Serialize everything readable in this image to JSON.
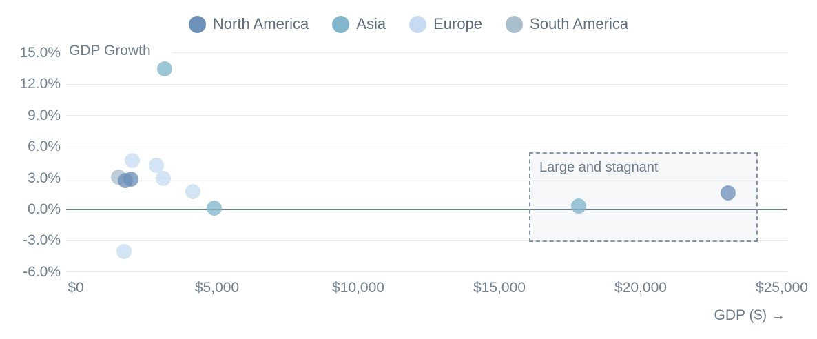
{
  "chart_data": {
    "type": "scatter",
    "title": "",
    "xlabel": "GDP ($) →",
    "ylabel": "GDP Growth",
    "legend_position": "top",
    "grid": "horizontal",
    "xlim": [
      0,
      26000
    ],
    "ylim": [
      -6,
      15
    ],
    "xticks": [
      {
        "value": 0,
        "label": "$0"
      },
      {
        "value": 5000,
        "label": "$5,000"
      },
      {
        "value": 10000,
        "label": "$10,000"
      },
      {
        "value": 15000,
        "label": "$15,000"
      },
      {
        "value": 20000,
        "label": "$20,000"
      },
      {
        "value": 25000,
        "label": "$25,000"
      }
    ],
    "yticks": [
      {
        "value": 15,
        "label": "15.0%"
      },
      {
        "value": 12,
        "label": "12.0%"
      },
      {
        "value": 9,
        "label": "9.0%"
      },
      {
        "value": 6,
        "label": "6.0%"
      },
      {
        "value": 3,
        "label": "3.0%"
      },
      {
        "value": 0,
        "label": "0.0%"
      },
      {
        "value": -3,
        "label": "-3.0%"
      },
      {
        "value": -6,
        "label": "-6.0%"
      }
    ],
    "series": [
      {
        "name": "North America",
        "color": "#6e91b9",
        "points": [
          [
            1750,
            2.8
          ],
          [
            1950,
            2.9
          ],
          [
            23100,
            1.6
          ]
        ]
      },
      {
        "name": "Asia",
        "color": "#82b6cc",
        "points": [
          [
            3150,
            13.5
          ],
          [
            4900,
            0.1
          ],
          [
            17800,
            0.3
          ]
        ]
      },
      {
        "name": "Europe",
        "color": "#c7dcf2",
        "points": [
          [
            2000,
            4.7
          ],
          [
            2850,
            4.2
          ],
          [
            3100,
            3.0
          ],
          [
            4150,
            1.7
          ],
          [
            1700,
            -4.0
          ]
        ]
      },
      {
        "name": "South America",
        "color": "#aabfcc",
        "points": [
          [
            1500,
            3.1
          ]
        ]
      }
    ],
    "annotation": {
      "label": "Large and stagnant",
      "x_range": [
        16050,
        24150
      ],
      "y_range": [
        -3.1,
        5.5
      ]
    }
  }
}
